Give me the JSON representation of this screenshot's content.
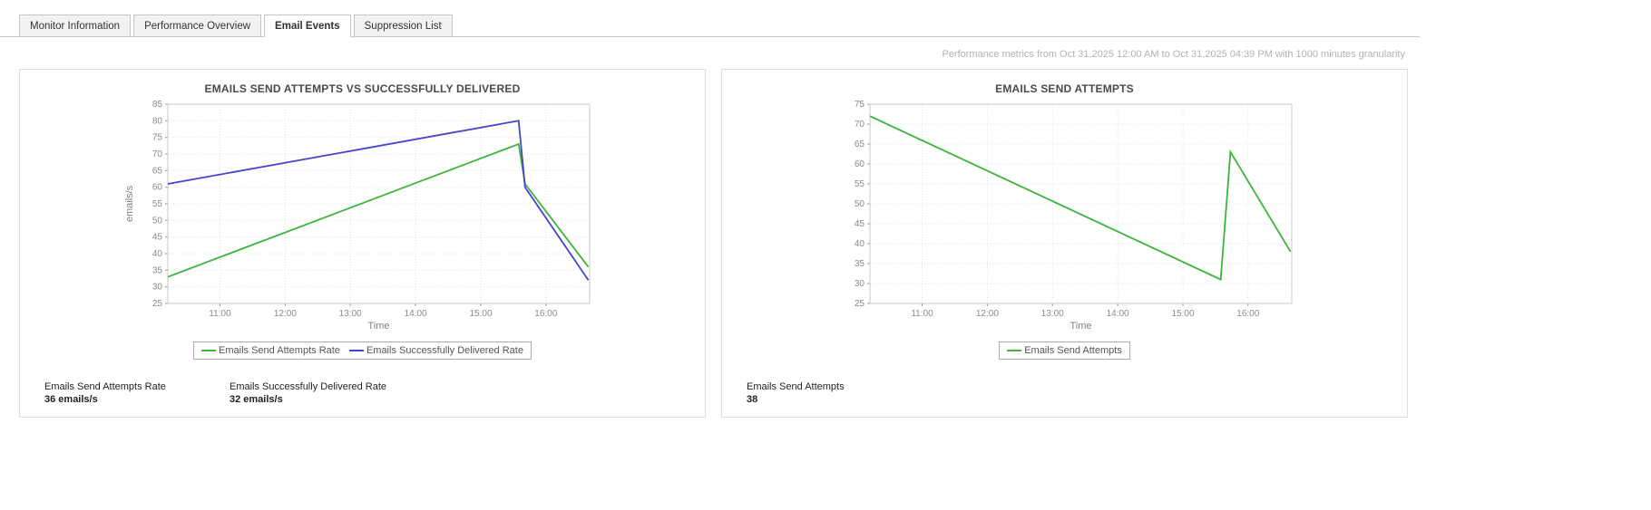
{
  "tabs": [
    {
      "label": "Monitor Information",
      "active": false
    },
    {
      "label": "Performance Overview",
      "active": false
    },
    {
      "label": "Email Events",
      "active": true
    },
    {
      "label": "Suppression List",
      "active": false
    }
  ],
  "header": {
    "metrics_note": "Performance metrics from Oct 31,2025 12:00 AM to Oct 31,2025 04:39 PM with 1000 minutes granularity"
  },
  "colors": {
    "series_green": "#3bb53b",
    "series_blue": "#4444cc",
    "grid": "#e2e2e2",
    "plot_border": "#c9c9c9"
  },
  "chart_data": [
    {
      "type": "line",
      "title": "EMAILS SEND ATTEMPTS VS SUCCESSFULLY DELIVERED",
      "xlabel": "Time",
      "ylabel": "emails/s",
      "ylim": [
        25,
        85
      ],
      "ytick_step": 5,
      "xlim": [
        10.2,
        16.67
      ],
      "xticks": [
        11,
        12,
        13,
        14,
        15,
        16
      ],
      "xtick_labels": [
        "11:00",
        "12:00",
        "13:00",
        "14:00",
        "15:00",
        "16:00"
      ],
      "grid": true,
      "legend_position": "bottom",
      "series": [
        {
          "name": "Emails Send Attempts Rate",
          "color": "#3bb53b",
          "x": [
            10.2,
            15.58,
            15.68,
            16.65
          ],
          "y": [
            33,
            73,
            61,
            36
          ]
        },
        {
          "name": "Emails Successfully Delivered Rate",
          "color": "#4444cc",
          "x": [
            10.2,
            15.58,
            15.68,
            16.65
          ],
          "y": [
            61,
            80,
            60,
            32
          ]
        }
      ],
      "footer_stats": [
        {
          "label": "Emails Send Attempts Rate",
          "value": "36 emails/s"
        },
        {
          "label": "Emails Successfully Delivered Rate",
          "value": "32 emails/s"
        }
      ]
    },
    {
      "type": "line",
      "title": "EMAILS SEND ATTEMPTS",
      "xlabel": "Time",
      "ylabel": "",
      "ylim": [
        25,
        75
      ],
      "ytick_step": 5,
      "xlim": [
        10.2,
        16.67
      ],
      "xticks": [
        11,
        12,
        13,
        14,
        15,
        16
      ],
      "xtick_labels": [
        "11:00",
        "12:00",
        "13:00",
        "14:00",
        "15:00",
        "16:00"
      ],
      "grid": true,
      "legend_position": "bottom",
      "series": [
        {
          "name": "Emails Send Attempts",
          "color": "#3bb53b",
          "x": [
            10.2,
            15.58,
            15.73,
            16.65
          ],
          "y": [
            72,
            31,
            63,
            38
          ]
        }
      ],
      "footer_stats": [
        {
          "label": "Emails Send Attempts",
          "value": "38"
        }
      ]
    }
  ]
}
